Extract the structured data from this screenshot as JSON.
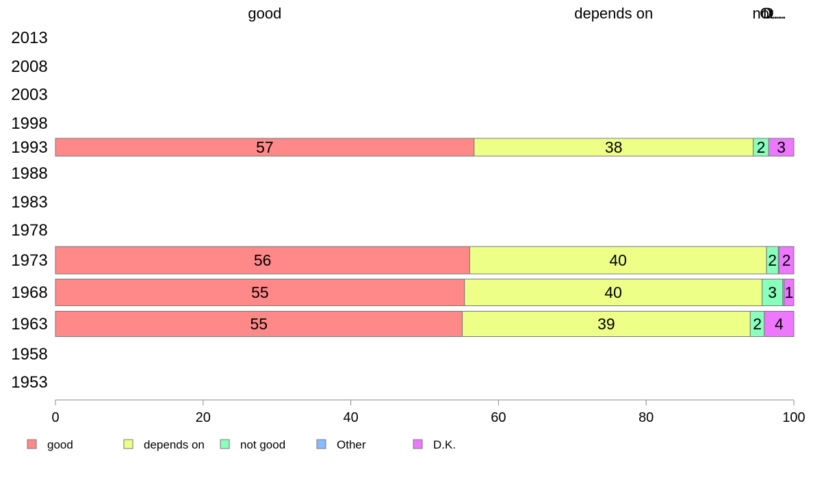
{
  "chart_data": {
    "type": "bar",
    "orientation": "horizontal",
    "stacked": true,
    "categories": [
      "2013",
      "2008",
      "2003",
      "1998",
      "1993",
      "1988",
      "1983",
      "1978",
      "1973",
      "1968",
      "1963",
      "1958",
      "1953"
    ],
    "series": [
      {
        "name": "good",
        "color": "#ff8888",
        "values": [
          null,
          null,
          null,
          null,
          56.7,
          null,
          null,
          null,
          56.1,
          55.4,
          55.1,
          null,
          null
        ]
      },
      {
        "name": "depends on",
        "color": "#eeff88",
        "values": [
          null,
          null,
          null,
          null,
          37.8,
          null,
          null,
          null,
          40.2,
          40.3,
          39.0,
          null,
          null
        ]
      },
      {
        "name": "not good",
        "color": "#88ffbb",
        "values": [
          null,
          null,
          null,
          null,
          2.1,
          null,
          null,
          null,
          1.6,
          2.8,
          1.9,
          null,
          null
        ]
      },
      {
        "name": "Other",
        "color": "#88bbff",
        "values": [
          null,
          null,
          null,
          null,
          0.0,
          null,
          null,
          null,
          0.1,
          0.2,
          0.0,
          null,
          null
        ]
      },
      {
        "name": "D.K.",
        "color": "#ee77ff",
        "values": [
          null,
          null,
          null,
          null,
          3.4,
          null,
          null,
          null,
          2.0,
          1.3,
          4.0,
          null,
          null
        ]
      }
    ],
    "data_labels": {
      "1993": [
        "57",
        "38",
        "2",
        "",
        "3"
      ],
      "1973": [
        "56",
        "40",
        "2",
        "",
        "2"
      ],
      "1968": [
        "55",
        "40",
        "3",
        "",
        "1"
      ],
      "1963": [
        "55",
        "39",
        "2",
        "",
        "4"
      ]
    },
    "top_labels": [
      "good",
      "depends on",
      "not...",
      "O...",
      "D..."
    ],
    "xlim": [
      0,
      100
    ],
    "xticks": [
      0,
      20,
      40,
      60,
      80,
      100
    ],
    "legend_position": "bottom",
    "grid": false
  }
}
